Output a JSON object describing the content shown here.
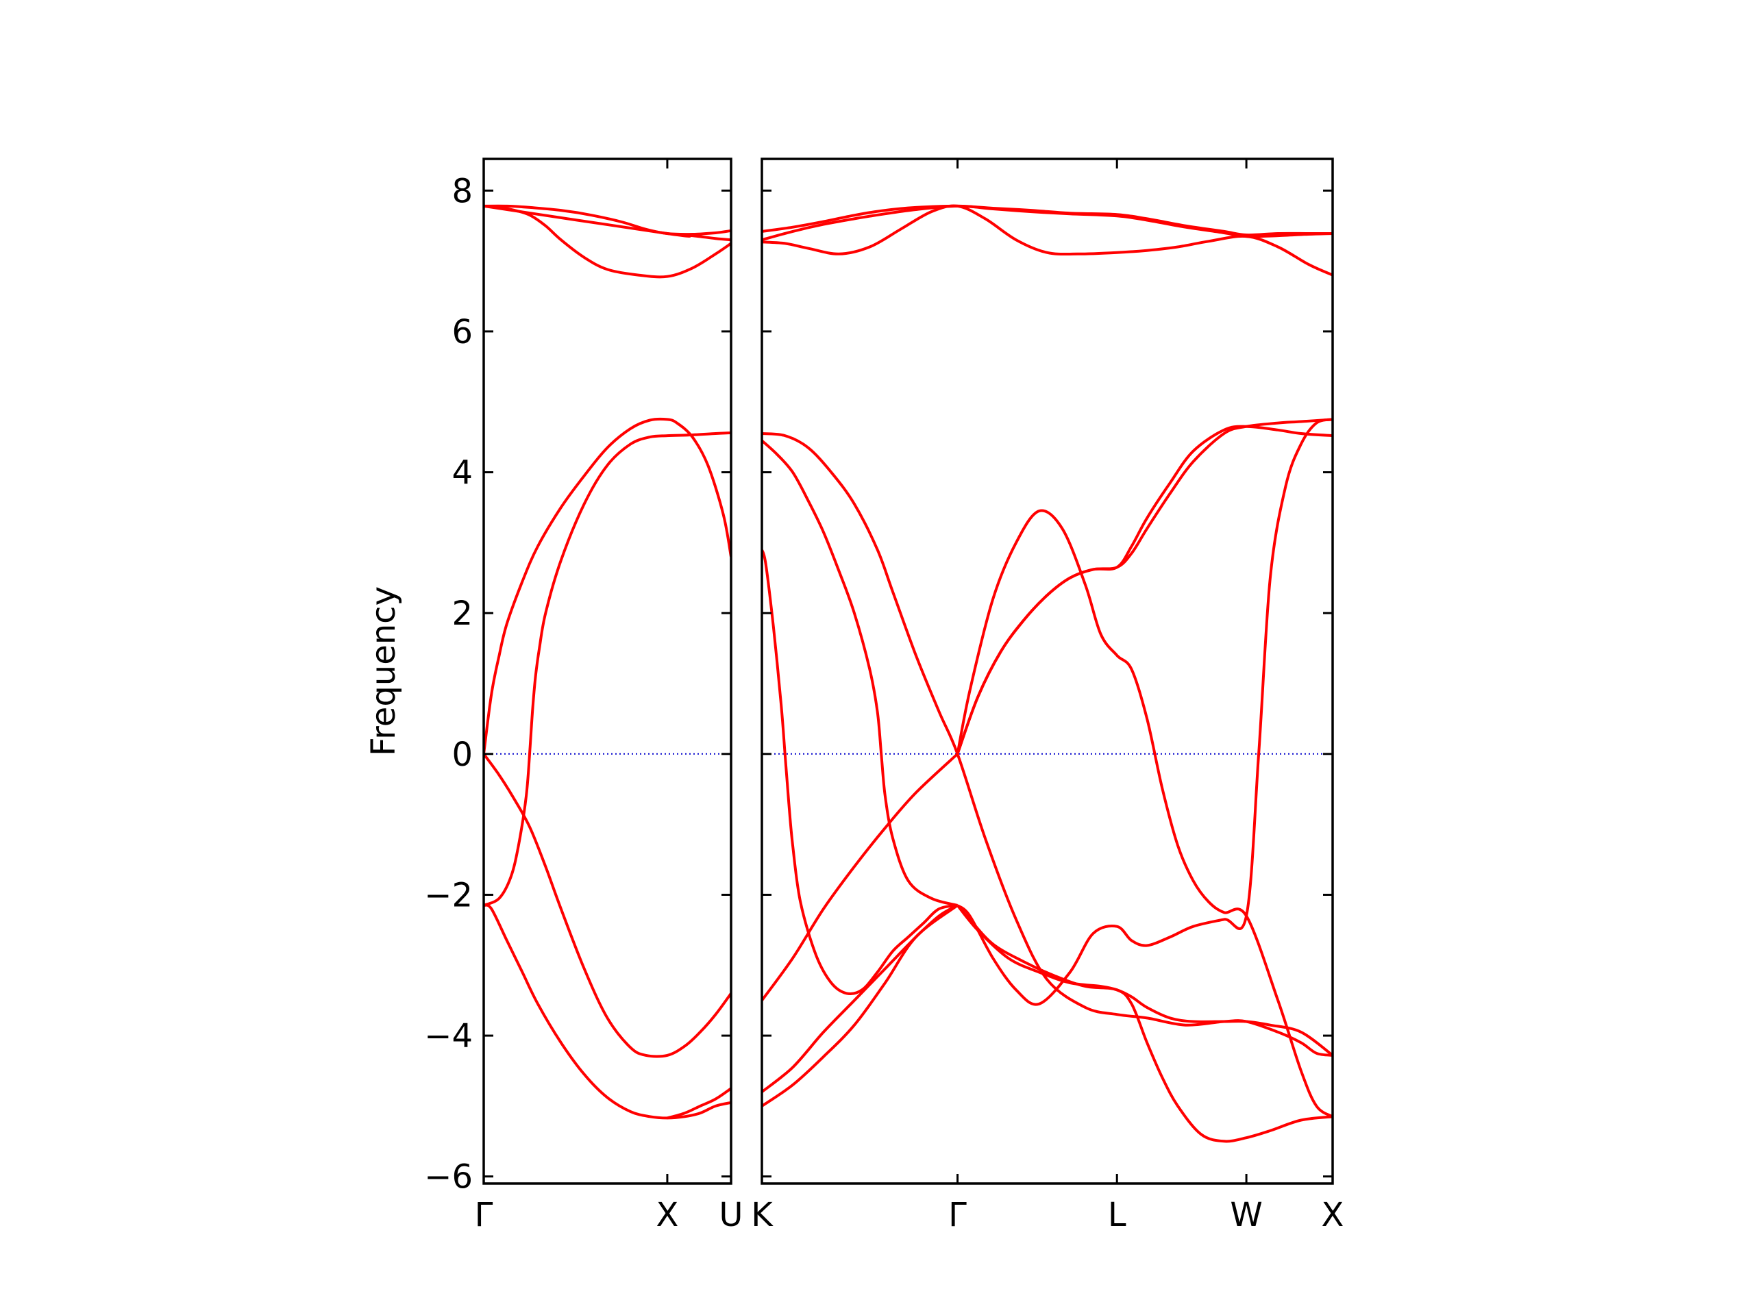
{
  "chart_data": {
    "type": "line",
    "ylabel": "Frequency",
    "ylim": [
      -6.1,
      8.45
    ],
    "yticks": [
      -6,
      -4,
      -2,
      0,
      2,
      4,
      6,
      8
    ],
    "colors": {
      "bands": "#ff0000",
      "zero_line": "#0000cc",
      "axes": "#000000"
    },
    "zero_line": {
      "y": 0,
      "style": "dotted"
    },
    "grid": false,
    "panels": [
      {
        "xlabels": [
          "Γ",
          "X",
          "U"
        ],
        "xticks": [
          0,
          0.2375,
          0.32
        ],
        "x_range": [
          0,
          0.32
        ],
        "bands": [
          {
            "x": [
              0,
              0.02,
              0.04,
              0.06,
              0.08,
              0.1,
              0.13,
              0.16,
              0.2,
              0.2375,
              0.27,
              0.3,
              0.32
            ],
            "y": [
              7.78,
              7.76,
              7.72,
              7.65,
              7.5,
              7.3,
              7.05,
              6.88,
              6.8,
              6.78,
              6.9,
              7.1,
              7.25
            ]
          },
          {
            "x": [
              0,
              0.03,
              0.06,
              0.1,
              0.14,
              0.18,
              0.21,
              0.2375,
              0.27,
              0.3,
              0.32
            ],
            "y": [
              7.78,
              7.78,
              7.76,
              7.72,
              7.65,
              7.55,
              7.45,
              7.39,
              7.38,
              7.4,
              7.43
            ]
          },
          {
            "x": [
              0,
              0.2375,
              0.27,
              0.3,
              0.32
            ],
            "y": [
              7.78,
              7.39,
              7.36,
              7.32,
              7.3
            ]
          },
          {
            "x": [
              0,
              0.01,
              0.02,
              0.03,
              0.05,
              0.07,
              0.1,
              0.13,
              0.16,
              0.19,
              0.215,
              0.2375,
              0.25,
              0.27,
              0.29,
              0.31,
              0.32
            ],
            "y": [
              0,
              0.85,
              1.4,
              1.85,
              2.45,
              2.95,
              3.5,
              3.95,
              4.35,
              4.62,
              4.74,
              4.75,
              4.7,
              4.5,
              4.1,
              3.4,
              2.8
            ]
          },
          {
            "x": [
              0,
              0.02,
              0.035,
              0.045,
              0.055,
              0.06,
              0.063,
              0.067,
              0.072,
              0.08,
              0.1,
              0.13,
              0.16,
              0.19,
              0.215,
              0.2375,
              0.27,
              0.3,
              0.32
            ],
            "y": [
              -2.15,
              -2.05,
              -1.75,
              -1.3,
              -0.6,
              0.1,
              0.6,
              1.1,
              1.5,
              2.0,
              2.75,
              3.55,
              4.1,
              4.4,
              4.5,
              4.52,
              4.53,
              4.55,
              4.56
            ]
          },
          {
            "x": [
              0,
              0.02,
              0.04,
              0.06,
              0.08,
              0.1,
              0.13,
              0.16,
              0.19,
              0.21,
              0.2375,
              0.26,
              0.28,
              0.3,
              0.32
            ],
            "y": [
              0,
              -0.3,
              -0.65,
              -1.05,
              -1.6,
              -2.2,
              -3.05,
              -3.75,
              -4.17,
              -4.28,
              -4.28,
              -4.15,
              -3.95,
              -3.7,
              -3.4
            ]
          },
          {
            "x": [
              0,
              0.01,
              0.03,
              0.05,
              0.07,
              0.1,
              0.13,
              0.16,
              0.19,
              0.215,
              0.2375,
              0.26,
              0.28,
              0.3,
              0.32
            ],
            "y": [
              -2.15,
              -2.2,
              -2.65,
              -3.1,
              -3.55,
              -4.1,
              -4.55,
              -4.88,
              -5.08,
              -5.15,
              -5.17,
              -5.15,
              -5.1,
              -5.0,
              -4.95
            ]
          },
          {
            "x": [
              0.2375,
              0.26,
              0.28,
              0.3,
              0.32
            ],
            "y": [
              -5.17,
              -5.1,
              -5.0,
              -4.9,
              -4.75
            ]
          }
        ]
      },
      {
        "xlabels": [
          "K",
          "Γ",
          "L",
          "W",
          "X"
        ],
        "xticks": [
          0,
          0.254,
          0.461,
          0.629,
          0.741
        ],
        "x_range": [
          0,
          0.741
        ],
        "bands": [
          {
            "x": [
              0,
              0.03,
              0.06,
              0.1,
              0.14,
              0.18,
              0.22,
              0.254,
              0.29,
              0.33,
              0.37,
              0.41,
              0.461,
              0.5,
              0.54,
              0.58,
              0.629,
              0.67,
              0.71,
              0.741
            ],
            "y": [
              7.27,
              7.25,
              7.18,
              7.1,
              7.2,
              7.45,
              7.7,
              7.78,
              7.6,
              7.3,
              7.12,
              7.1,
              7.12,
              7.15,
              7.2,
              7.28,
              7.35,
              7.2,
              6.95,
              6.8
            ]
          },
          {
            "x": [
              0,
              0.04,
              0.08,
              0.12,
              0.16,
              0.2,
              0.254,
              0.3,
              0.35,
              0.4,
              0.461,
              0.5,
              0.55,
              0.6,
              0.629,
              0.67,
              0.71,
              0.741
            ],
            "y": [
              7.42,
              7.48,
              7.56,
              7.65,
              7.72,
              7.76,
              7.78,
              7.75,
              7.72,
              7.68,
              7.66,
              7.6,
              7.5,
              7.42,
              7.37,
              7.39,
              7.39,
              7.39
            ]
          },
          {
            "x": [
              0,
              0.04,
              0.08,
              0.12,
              0.16,
              0.2,
              0.254,
              0.3,
              0.35,
              0.4,
              0.461,
              0.5,
              0.55,
              0.6,
              0.629,
              0.67,
              0.71,
              0.741
            ],
            "y": [
              7.3,
              7.42,
              7.52,
              7.6,
              7.67,
              7.73,
              7.78,
              7.74,
              7.7,
              7.67,
              7.64,
              7.58,
              7.48,
              7.4,
              7.35,
              7.36,
              7.38,
              7.39
            ]
          },
          {
            "x": [
              0,
              0.005,
              0.015,
              0.025,
              0.03,
              0.035,
              0.04,
              0.05,
              0.07,
              0.09,
              0.11,
              0.13,
              0.15,
              0.17,
              0.19,
              0.21,
              0.23,
              0.254
            ],
            "y": [
              2.9,
              2.7,
              1.8,
              0.7,
              0.0,
              -0.7,
              -1.3,
              -2.1,
              -2.85,
              -3.25,
              -3.4,
              -3.35,
              -3.1,
              -2.8,
              -2.6,
              -2.4,
              -2.2,
              -2.15
            ]
          },
          {
            "x": [
              0,
              0.03,
              0.06,
              0.09,
              0.12,
              0.15,
              0.17,
              0.2,
              0.23,
              0.254,
              0.29,
              0.33,
              0.37,
              0.42,
              0.461,
              0.5,
              0.55,
              0.6,
              0.629,
              0.67,
              0.7,
              0.72,
              0.741
            ],
            "y": [
              4.55,
              4.52,
              4.35,
              4.0,
              3.55,
              2.9,
              2.3,
              1.4,
              0.6,
              0.0,
              -1.2,
              -2.35,
              -3.2,
              -3.6,
              -3.7,
              -3.75,
              -3.85,
              -3.8,
              -3.8,
              -3.95,
              -4.1,
              -4.25,
              -4.28
            ]
          },
          {
            "x": [
              0,
              0.02,
              0.04,
              0.06,
              0.08,
              0.1,
              0.12,
              0.14,
              0.15,
              0.155,
              0.16,
              0.17,
              0.19,
              0.22,
              0.254
            ],
            "y": [
              4.45,
              4.25,
              4.0,
              3.6,
              3.15,
              2.6,
              2.0,
              1.2,
              0.6,
              0.0,
              -0.6,
              -1.2,
              -1.8,
              -2.05,
              -2.15
            ]
          },
          {
            "x": [
              0,
              0.04,
              0.08,
              0.12,
              0.16,
              0.2,
              0.254
            ],
            "y": [
              -3.5,
              -2.9,
              -2.2,
              -1.6,
              -1.05,
              -0.55,
              0.0
            ]
          },
          {
            "x": [
              0,
              0.04,
              0.08,
              0.12,
              0.16,
              0.2,
              0.23,
              0.254
            ],
            "y": [
              -4.8,
              -4.45,
              -3.95,
              -3.5,
              -3.05,
              -2.6,
              -2.3,
              -2.15
            ]
          },
          {
            "x": [
              0,
              0.04,
              0.08,
              0.12,
              0.16,
              0.2,
              0.254
            ],
            "y": [
              -5.0,
              -4.7,
              -4.3,
              -3.85,
              -3.25,
              -2.6,
              -2.15
            ]
          },
          {
            "x": [
              0.254,
              0.27,
              0.3,
              0.33,
              0.36,
              0.39,
              0.42,
              0.44,
              0.461,
              0.48,
              0.5,
              0.52,
              0.54,
              0.56,
              0.58,
              0.6,
              0.629,
              0.67,
              0.7,
              0.72,
              0.741
            ],
            "y": [
              0.0,
              0.9,
              2.2,
              3.0,
              3.45,
              3.2,
              2.4,
              1.7,
              1.4,
              1.2,
              0.5,
              -0.5,
              -1.3,
              -1.8,
              -2.1,
              -2.25,
              -2.3,
              -3.5,
              -4.5,
              -5.0,
              -5.15
            ]
          },
          {
            "x": [
              0.254,
              0.28,
              0.31,
              0.34,
              0.37,
              0.4,
              0.43,
              0.461,
              0.48,
              0.5,
              0.53,
              0.56,
              0.6,
              0.629,
              0.67,
              0.7,
              0.741
            ],
            "y": [
              0.0,
              0.8,
              1.45,
              1.9,
              2.25,
              2.5,
              2.62,
              2.65,
              2.85,
              3.2,
              3.7,
              4.15,
              4.55,
              4.65,
              4.7,
              4.72,
              4.75
            ]
          },
          {
            "x": [
              0.254,
              0.28,
              0.31,
              0.34,
              0.37,
              0.4,
              0.43,
              0.461,
              0.48,
              0.5,
              0.53,
              0.56,
              0.6,
              0.629,
              0.67,
              0.7,
              0.741
            ],
            "y": [
              0.0,
              0.8,
              1.45,
              1.9,
              2.25,
              2.5,
              2.62,
              2.65,
              2.95,
              3.35,
              3.85,
              4.3,
              4.6,
              4.65,
              4.6,
              4.55,
              4.52
            ]
          },
          {
            "x": [
              0.254,
              0.27,
              0.3,
              0.33,
              0.36,
              0.4,
              0.43,
              0.461,
              0.48,
              0.5,
              0.53,
              0.56,
              0.6,
              0.629,
              0.645,
              0.66,
              0.68,
              0.7,
              0.72,
              0.741
            ],
            "y": [
              -2.15,
              -2.3,
              -2.9,
              -3.35,
              -3.55,
              -3.1,
              -2.55,
              -2.45,
              -2.65,
              -2.72,
              -2.6,
              -2.45,
              -2.35,
              -2.3,
              0.0,
              2.5,
              3.8,
              4.4,
              4.7,
              4.75
            ]
          },
          {
            "x": [
              0.254,
              0.27,
              0.3,
              0.34,
              0.38,
              0.42,
              0.461,
              0.48,
              0.5,
              0.52,
              0.54,
              0.57,
              0.6,
              0.629,
              0.66,
              0.7,
              0.741
            ],
            "y": [
              -2.15,
              -2.35,
              -2.7,
              -2.95,
              -3.15,
              -3.3,
              -3.35,
              -3.55,
              -4.1,
              -4.6,
              -5.0,
              -5.4,
              -5.5,
              -5.45,
              -5.35,
              -5.2,
              -5.15
            ]
          },
          {
            "x": [
              0.254,
              0.28,
              0.32,
              0.36,
              0.4,
              0.44,
              0.461,
              0.48,
              0.5,
              0.53,
              0.56,
              0.6,
              0.629,
              0.66,
              0.7,
              0.741
            ],
            "y": [
              -2.15,
              -2.5,
              -2.9,
              -3.1,
              -3.25,
              -3.3,
              -3.35,
              -3.45,
              -3.6,
              -3.75,
              -3.8,
              -3.8,
              -3.8,
              -3.85,
              -3.95,
              -4.28
            ]
          }
        ]
      }
    ]
  }
}
